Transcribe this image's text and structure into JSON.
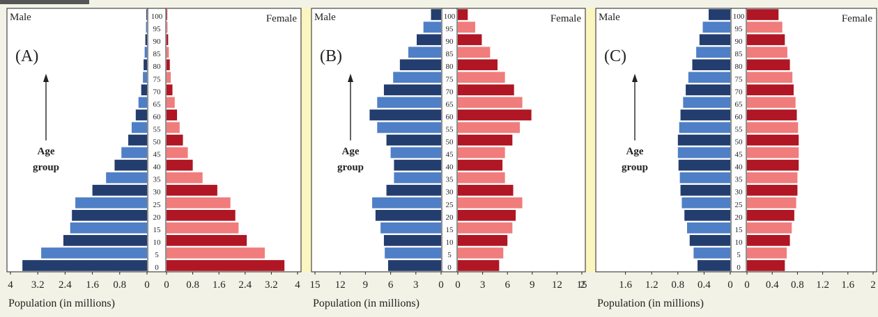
{
  "colors": {
    "male_dark": "#233d6e",
    "male_light": "#4f7fc6",
    "female_dark": "#b01623",
    "female_light": "#f07c7c",
    "gap": "#fbf6c0",
    "background": "#f2f2e6"
  },
  "chart_data": [
    {
      "type": "bar",
      "panel_label": "(A)",
      "male_label": "Male",
      "female_label": "Female",
      "age_label": [
        "Age",
        "group"
      ],
      "xlabel": "Population (in millions)",
      "categories": [
        "0",
        "5",
        "10",
        "15",
        "20",
        "25",
        "30",
        "35",
        "40",
        "45",
        "50",
        "55",
        "60",
        "65",
        "70",
        "75",
        "80",
        "85",
        "90",
        "95",
        "100"
      ],
      "male_ticks": [
        "4",
        "3.2",
        "2.4",
        "1.6",
        "0.8",
        "0"
      ],
      "female_ticks": [
        "0",
        "0.8",
        "1.6",
        "2.4",
        "3.2",
        "4"
      ],
      "xlim": [
        0,
        4
      ],
      "series": [
        {
          "name": "Male",
          "values": [
            3.65,
            3.1,
            2.45,
            2.25,
            2.2,
            2.1,
            1.6,
            1.2,
            0.95,
            0.75,
            0.55,
            0.45,
            0.33,
            0.25,
            0.17,
            0.12,
            0.1,
            0.07,
            0.05,
            0.03,
            0.02
          ]
        },
        {
          "name": "Female",
          "values": [
            3.6,
            3.0,
            2.45,
            2.2,
            2.1,
            1.95,
            1.55,
            1.1,
            0.8,
            0.65,
            0.5,
            0.4,
            0.32,
            0.25,
            0.18,
            0.13,
            0.1,
            0.07,
            0.05,
            0.03,
            0.02
          ]
        }
      ]
    },
    {
      "type": "bar",
      "panel_label": "(B)",
      "male_label": "Male",
      "female_label": "Female",
      "age_label": [
        "Age",
        "group"
      ],
      "xlabel": "Population (in millions)",
      "categories": [
        "0",
        "5",
        "10",
        "15",
        "20",
        "25",
        "30",
        "35",
        "40",
        "45",
        "50",
        "55",
        "60",
        "65",
        "70",
        "75",
        "80",
        "85",
        "90",
        "95",
        "100"
      ],
      "male_ticks": [
        "15",
        "12",
        "9",
        "6",
        "3",
        "0"
      ],
      "female_ticks": [
        "0",
        "3",
        "6",
        "9",
        "12",
        "15"
      ],
      "extra_ticks": [
        "2"
      ],
      "xlim": [
        0,
        15
      ],
      "series": [
        {
          "name": "Male",
          "values": [
            6.3,
            6.7,
            6.8,
            7.2,
            7.8,
            8.2,
            6.5,
            5.6,
            5.6,
            6.0,
            6.5,
            7.6,
            8.5,
            7.6,
            6.8,
            5.7,
            4.9,
            3.9,
            2.9,
            2.1,
            1.2
          ]
        },
        {
          "name": "Female",
          "values": [
            5.0,
            5.5,
            6.0,
            6.6,
            7.0,
            7.8,
            6.7,
            5.7,
            5.4,
            5.7,
            6.6,
            7.5,
            8.9,
            7.8,
            6.8,
            5.7,
            4.8,
            3.9,
            2.9,
            2.1,
            1.2
          ]
        }
      ]
    },
    {
      "type": "bar",
      "panel_label": "(C)",
      "male_label": "Male",
      "female_label": "Female",
      "age_label": [
        "Age",
        "group"
      ],
      "xlabel": "Population (in millions)",
      "categories": [
        "0",
        "5",
        "10",
        "15",
        "20",
        "25",
        "30",
        "35",
        "40",
        "45",
        "50",
        "55",
        "60",
        "65",
        "70",
        "75",
        "80",
        "85",
        "90",
        "95",
        "100"
      ],
      "male_ticks": [
        "1.6",
        "1.2",
        "0.8",
        "0.4",
        "0"
      ],
      "female_ticks": [
        "0",
        "0.4",
        "0.8",
        "1.2",
        "1.6",
        "2"
      ],
      "xlim": [
        0,
        2
      ],
      "series": [
        {
          "name": "Male",
          "values": [
            0.5,
            0.56,
            0.62,
            0.66,
            0.7,
            0.74,
            0.76,
            0.77,
            0.79,
            0.8,
            0.8,
            0.78,
            0.76,
            0.72,
            0.68,
            0.64,
            0.58,
            0.52,
            0.47,
            0.42,
            0.33
          ]
        },
        {
          "name": "Female",
          "values": [
            0.6,
            0.63,
            0.68,
            0.71,
            0.75,
            0.78,
            0.8,
            0.8,
            0.82,
            0.82,
            0.82,
            0.81,
            0.79,
            0.77,
            0.74,
            0.72,
            0.68,
            0.64,
            0.6,
            0.56,
            0.5
          ]
        }
      ]
    }
  ]
}
